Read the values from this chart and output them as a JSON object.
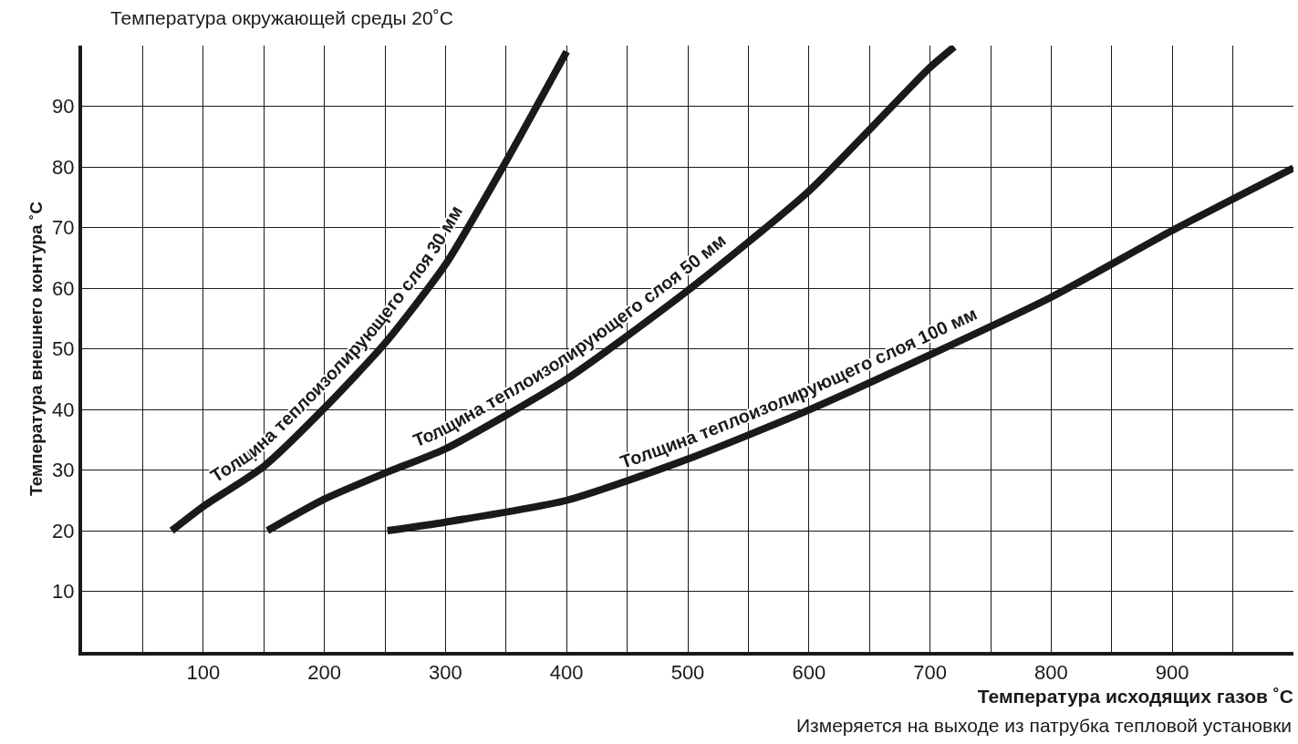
{
  "chart_data": {
    "type": "line",
    "title": "Температура окружающей среды 20˚С",
    "xlabel": "Температура исходящих газов ˚С",
    "ylabel": "Температура внешнего контура ˚С",
    "annotations": [
      "Измеряется на выходе из патрубка тепловой установки"
    ],
    "series": [
      {
        "name": "Толщина теплоизолирующего слоя 30 мм",
        "color": "#1a1a1a",
        "x": [
          74,
          100,
          150,
          200,
          250,
          300,
          350,
          400
        ],
        "values": [
          20,
          24,
          30.6,
          40.2,
          50.9,
          63.9,
          80.9,
          99
        ]
      },
      {
        "name": "Толщина теплоизолирующего слоя 50 мм",
        "color": "#1a1a1a",
        "x": [
          153,
          200,
          250,
          300,
          400,
          500,
          600,
          700,
          720
        ],
        "values": [
          20,
          25.2,
          29.5,
          33.5,
          45,
          59.6,
          76,
          96.4,
          99.8
        ]
      },
      {
        "name": "Толщина теплоизолирующего слоя 100 мм",
        "color": "#1a1a1a",
        "x": [
          252,
          300,
          400,
          500,
          600,
          700,
          800,
          900,
          1000
        ],
        "values": [
          20,
          21.4,
          25,
          31.8,
          39.9,
          49,
          58.5,
          69.5,
          79.8
        ]
      }
    ],
    "xlim": [
      0,
      1000
    ],
    "ylim": [
      0,
      100
    ],
    "xticks": [
      {
        "value": 50,
        "label": null
      },
      100,
      {
        "value": 150,
        "label": null
      },
      200,
      {
        "value": 250,
        "label": null
      },
      300,
      {
        "value": 350,
        "label": null
      },
      400,
      {
        "value": 450,
        "label": null
      },
      500,
      {
        "value": 550,
        "label": null
      },
      600,
      {
        "value": 650,
        "label": null
      },
      700,
      {
        "value": 750,
        "label": null
      },
      800,
      {
        "value": 850,
        "label": null
      },
      900,
      {
        "value": 950,
        "label": null
      }
    ],
    "yticks": [
      10,
      20,
      30,
      40,
      50,
      60,
      70,
      80,
      90
    ],
    "grid": true,
    "legend": false,
    "marker": "none",
    "line_style": "solid"
  }
}
